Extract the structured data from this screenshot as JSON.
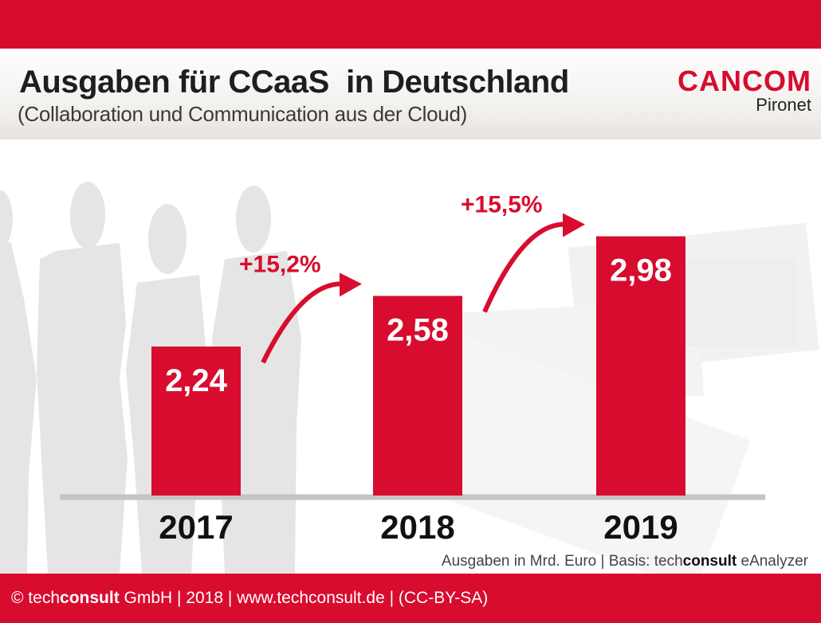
{
  "header": {
    "title": "Ausgaben für CCaaS  in Deutschland",
    "subtitle": "(Collaboration und Communication aus der Cloud)",
    "logo_main": "CANCOM",
    "logo_sub": "Pironet"
  },
  "colors": {
    "brand_red": "#d80c2e",
    "axis_gray": "#c4c4c4",
    "text_dark": "#111111"
  },
  "chart_data": {
    "type": "bar",
    "title": "Ausgaben für CCaaS in Deutschland",
    "subtitle": "(Collaboration und Communication aus der Cloud)",
    "categories": [
      "2017",
      "2018",
      "2019"
    ],
    "values": [
      2.24,
      2.58,
      2.98
    ],
    "value_labels": [
      "2,24",
      "2,58",
      "2,98"
    ],
    "growth_annotations": [
      {
        "from": "2017",
        "to": "2018",
        "label": "+15,2%"
      },
      {
        "from": "2018",
        "to": "2019",
        "label": "+15,5%"
      }
    ],
    "xlabel": "",
    "ylabel": "Ausgaben in Mrd. Euro",
    "grid": false,
    "legend": "none"
  },
  "source": {
    "prefix": "Ausgaben in Mrd. Euro | Basis: tech",
    "brand_bold": "consult",
    "suffix": " eAnalyzer"
  },
  "footer": {
    "copyright": "© tech",
    "brand_bold": "consult",
    "rest": " GmbH | 2018 | www.techconsult.de | (CC-BY-SA)"
  }
}
